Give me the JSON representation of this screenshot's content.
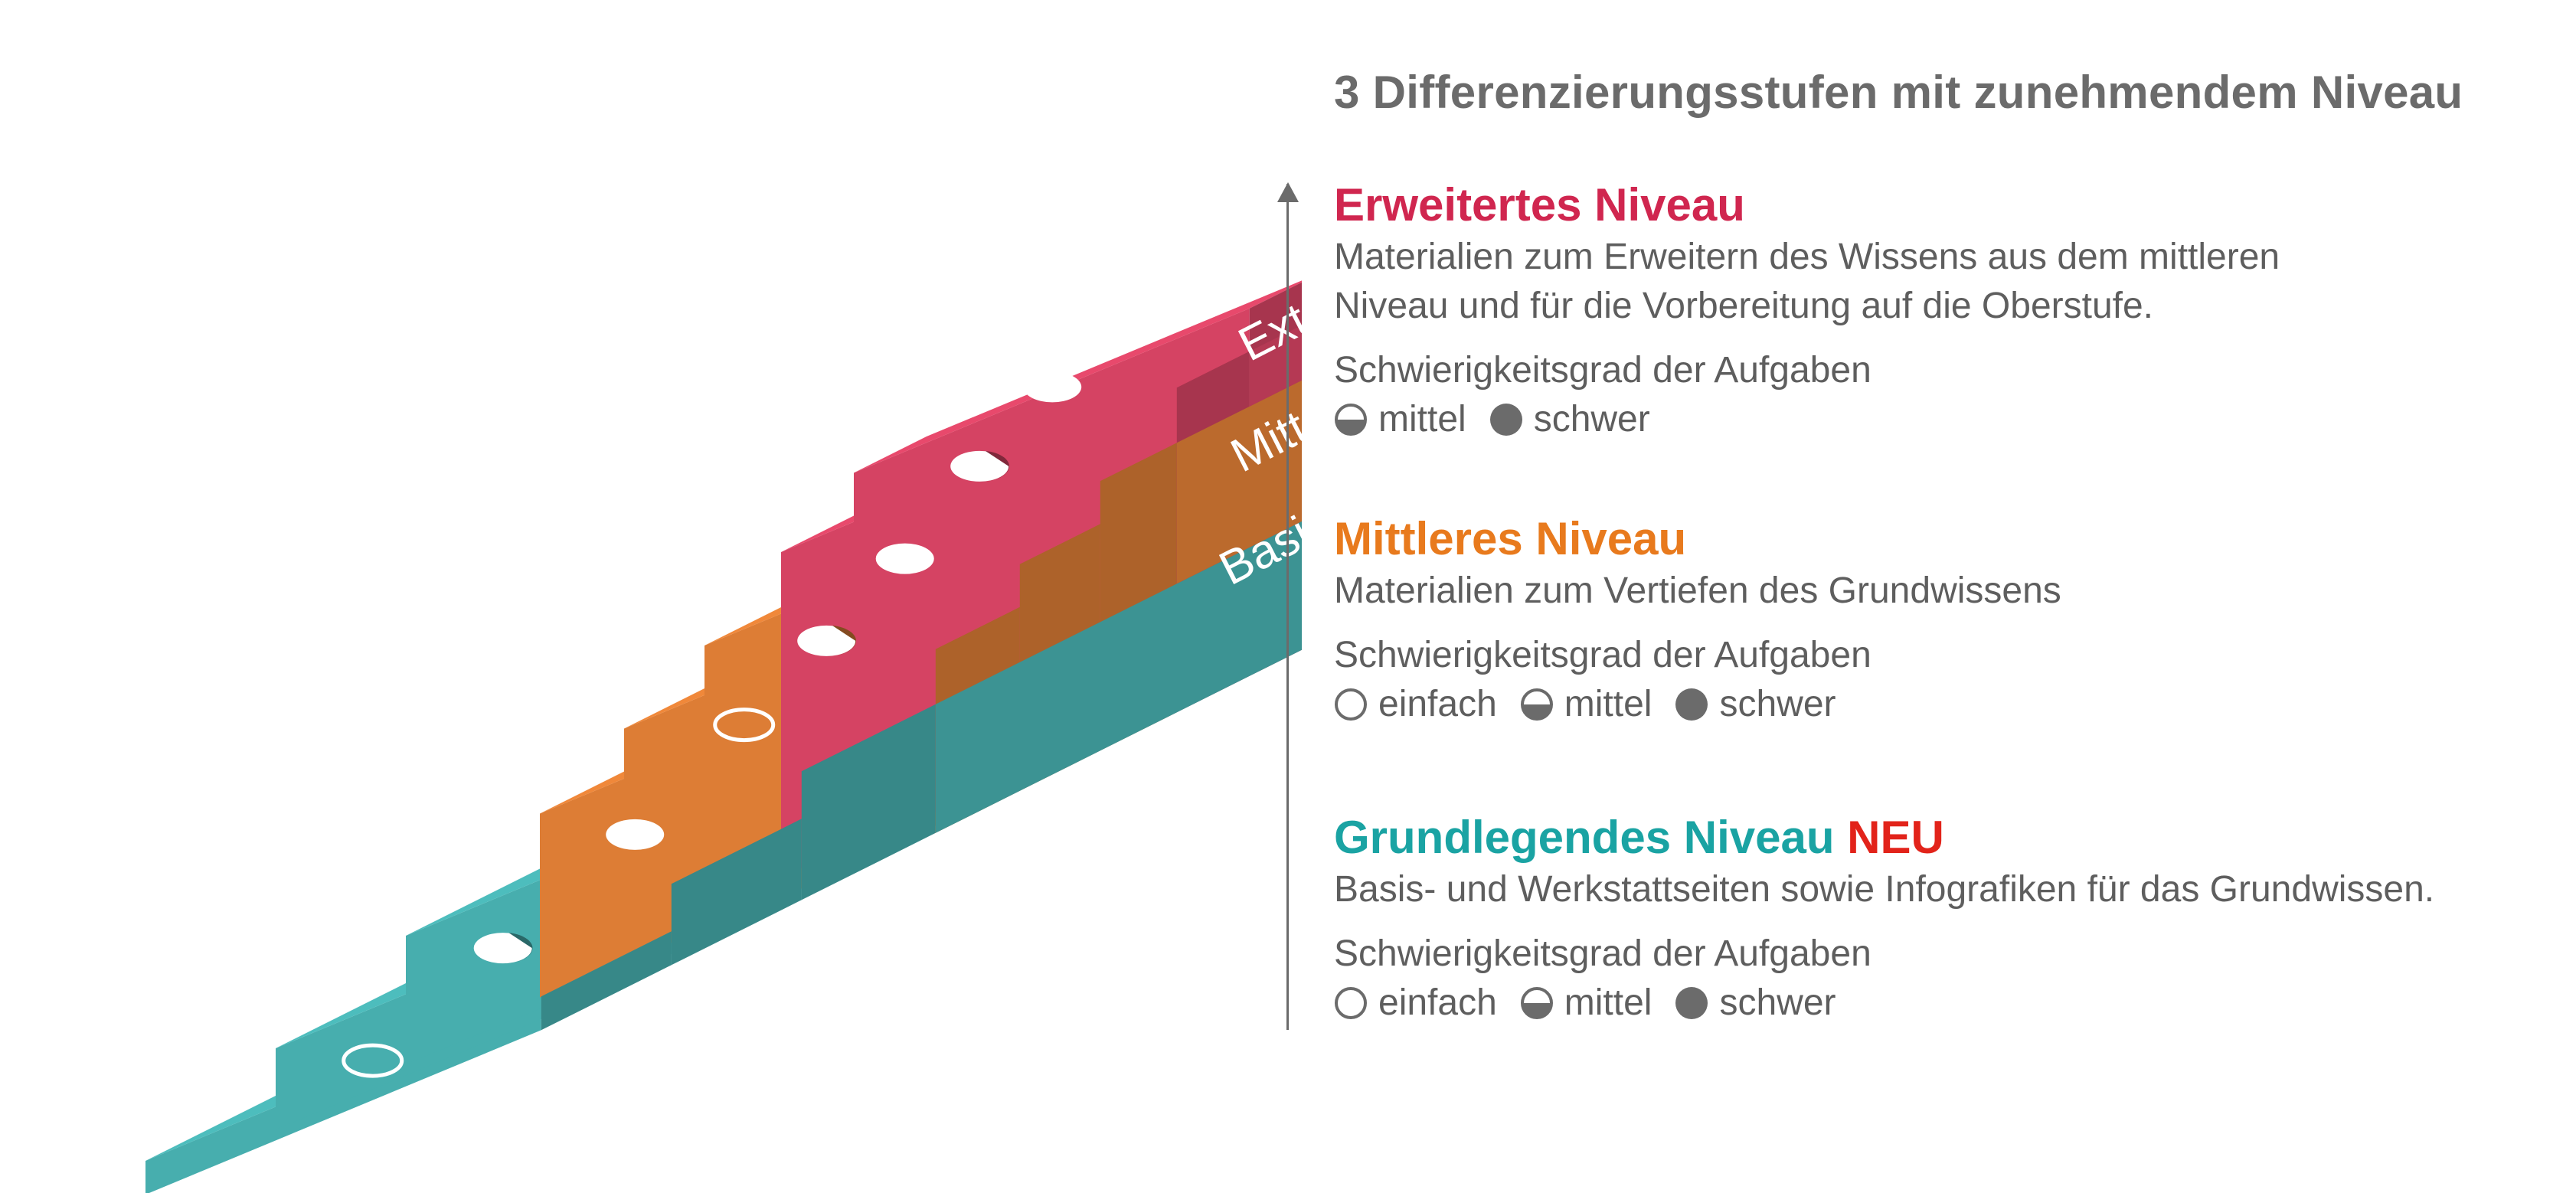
{
  "heading": "3 Differenzierungsstufen mit zunehmendem Niveau",
  "colors": {
    "extra": "#e8496c",
    "mittel": "#f0883a",
    "basis": "#4dbdbd",
    "extra_title": "#d0264f",
    "mittel_title": "#e87a1d",
    "basis_title": "#1aa3a3",
    "neu": "#e2231a",
    "symbol": "#6b6b6b"
  },
  "stair_labels": {
    "extra": "Extra",
    "mittel": "Mittel",
    "basis": "Basis"
  },
  "levels": {
    "erweitert": {
      "title": "Erweitertes Niveau",
      "desc_line1": "Materialien zum Erweitern des Wissens aus dem mittleren",
      "desc_line2": "Niveau und für die Vorbereitung auf die Oberstufe.",
      "difficulty_label": "Schwierigkeitsgrad der Aufgaben",
      "items": [
        "mittel",
        "schwer"
      ]
    },
    "mittleres": {
      "title": "Mittleres Niveau",
      "desc_line1": "Materialien zum Vertiefen des Grundwissens",
      "difficulty_label": "Schwierigkeitsgrad der Aufgaben",
      "items": [
        "einfach",
        "mittel",
        "schwer"
      ]
    },
    "grundlegend": {
      "title": "Grundlegendes Niveau",
      "badge": "NEU",
      "desc_line1": "Basis- und Werkstattseiten sowie Infografiken für das Grundwissen.",
      "difficulty_label": "Schwierigkeitsgrad der Aufgaben",
      "items": [
        "einfach",
        "mittel",
        "schwer"
      ]
    }
  }
}
